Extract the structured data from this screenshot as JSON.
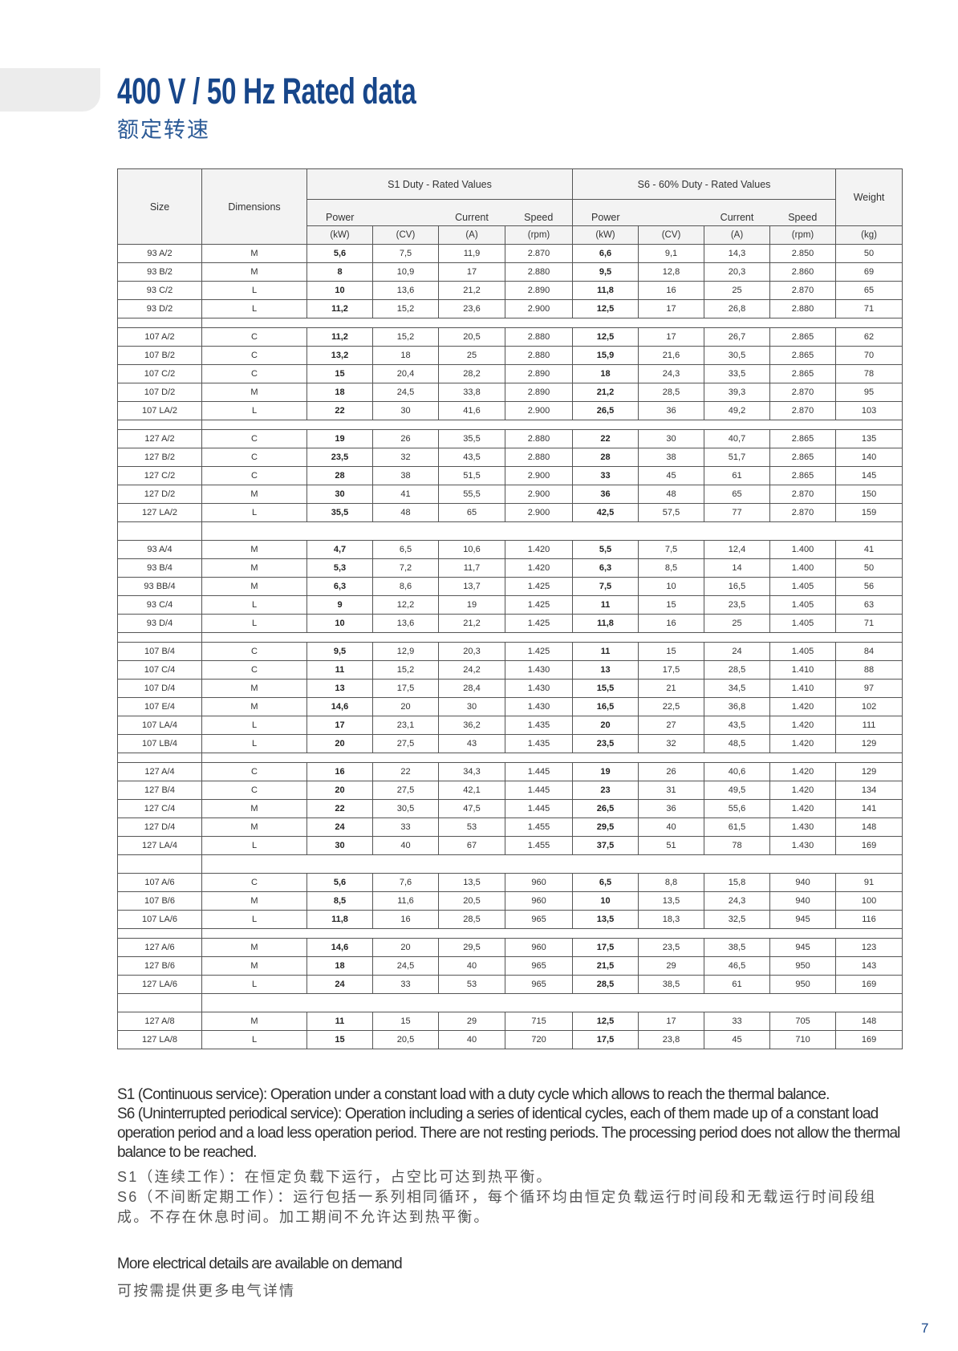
{
  "header": {
    "title": "400 V / 50 Hz Rated data",
    "subtitle": "额定转速",
    "title_color": "#17468a"
  },
  "table": {
    "col_size": "Size",
    "col_dimensions": "Dimensions",
    "group_s1": "S1 Duty - Rated Values",
    "group_s6": "S6 - 60% Duty - Rated Values",
    "col_weight": "Weight",
    "sub_power": "Power",
    "sub_current": "Current",
    "sub_speed": "Speed",
    "units": [
      "(kW)",
      "(CV)",
      "(A)",
      "(rpm)",
      "(kW)",
      "(CV)",
      "(A)",
      "(rpm)",
      "(kg)"
    ],
    "groups": [
      {
        "separator_after": "small",
        "rows": [
          [
            "93 A/2",
            "M",
            "5,6",
            "7,5",
            "11,9",
            "2.870",
            "6,6",
            "9,1",
            "14,3",
            "2.850",
            "50"
          ],
          [
            "93 B/2",
            "M",
            "8",
            "10,9",
            "17",
            "2.880",
            "9,5",
            "12,8",
            "20,3",
            "2.860",
            "69"
          ],
          [
            "93 C/2",
            "L",
            "10",
            "13,6",
            "21,2",
            "2.890",
            "11,8",
            "16",
            "25",
            "2.870",
            "65"
          ],
          [
            "93 D/2",
            "L",
            "11,2",
            "15,2",
            "23,6",
            "2.900",
            "12,5",
            "17",
            "26,8",
            "2.880",
            "71"
          ]
        ]
      },
      {
        "separator_after": "small",
        "rows": [
          [
            "107 A/2",
            "C",
            "11,2",
            "15,2",
            "20,5",
            "2.880",
            "12,5",
            "17",
            "26,7",
            "2.865",
            "62"
          ],
          [
            "107 B/2",
            "C",
            "13,2",
            "18",
            "25",
            "2.880",
            "15,9",
            "21,6",
            "30,5",
            "2.865",
            "70"
          ],
          [
            "107 C/2",
            "C",
            "15",
            "20,4",
            "28,2",
            "2.890",
            "18",
            "24,3",
            "33,5",
            "2.865",
            "78"
          ],
          [
            "107 D/2",
            "M",
            "18",
            "24,5",
            "33,8",
            "2.890",
            "21,2",
            "28,5",
            "39,3",
            "2.870",
            "95"
          ],
          [
            "107 LA/2",
            "L",
            "22",
            "30",
            "41,6",
            "2.900",
            "26,5",
            "36",
            "49,2",
            "2.870",
            "103"
          ]
        ]
      },
      {
        "separator_after": "full",
        "rows": [
          [
            "127 A/2",
            "C",
            "19",
            "26",
            "35,5",
            "2.880",
            "22",
            "30",
            "40,7",
            "2.865",
            "135"
          ],
          [
            "127 B/2",
            "C",
            "23,5",
            "32",
            "43,5",
            "2.880",
            "28",
            "38",
            "51,7",
            "2.865",
            "140"
          ],
          [
            "127 C/2",
            "C",
            "28",
            "38",
            "51,5",
            "2.900",
            "33",
            "45",
            "61",
            "2.865",
            "145"
          ],
          [
            "127 D/2",
            "M",
            "30",
            "41",
            "55,5",
            "2.900",
            "36",
            "48",
            "65",
            "2.870",
            "150"
          ],
          [
            "127 LA/2",
            "L",
            "35,5",
            "48",
            "65",
            "2.900",
            "42,5",
            "57,5",
            "77",
            "2.870",
            "159"
          ]
        ]
      },
      {
        "separator_after": "small",
        "rows": [
          [
            "93 A/4",
            "M",
            "4,7",
            "6,5",
            "10,6",
            "1.420",
            "5,5",
            "7,5",
            "12,4",
            "1.400",
            "41"
          ],
          [
            "93 B/4",
            "M",
            "5,3",
            "7,2",
            "11,7",
            "1.420",
            "6,3",
            "8,5",
            "14",
            "1.400",
            "50"
          ],
          [
            "93 BB/4",
            "M",
            "6,3",
            "8,6",
            "13,7",
            "1.425",
            "7,5",
            "10",
            "16,5",
            "1.405",
            "56"
          ],
          [
            "93 C/4",
            "L",
            "9",
            "12,2",
            "19",
            "1.425",
            "11",
            "15",
            "23,5",
            "1.405",
            "63"
          ],
          [
            "93 D/4",
            "L",
            "10",
            "13,6",
            "21,2",
            "1.425",
            "11,8",
            "16",
            "25",
            "1.405",
            "71"
          ]
        ]
      },
      {
        "separator_after": "small",
        "rows": [
          [
            "107 B/4",
            "C",
            "9,5",
            "12,9",
            "20,3",
            "1.425",
            "11",
            "15",
            "24",
            "1.405",
            "84"
          ],
          [
            "107 C/4",
            "C",
            "11",
            "15,2",
            "24,2",
            "1.430",
            "13",
            "17,5",
            "28,5",
            "1.410",
            "88"
          ],
          [
            "107 D/4",
            "M",
            "13",
            "17,5",
            "28,4",
            "1.430",
            "15,5",
            "21",
            "34,5",
            "1.410",
            "97"
          ],
          [
            "107 E/4",
            "M",
            "14,6",
            "20",
            "30",
            "1.430",
            "16,5",
            "22,5",
            "36,8",
            "1.420",
            "102"
          ],
          [
            "107 LA/4",
            "L",
            "17",
            "23,1",
            "36,2",
            "1.435",
            "20",
            "27",
            "43,5",
            "1.420",
            "111"
          ],
          [
            "107 LB/4",
            "L",
            "20",
            "27,5",
            "43",
            "1.435",
            "23,5",
            "32",
            "48,5",
            "1.420",
            "129"
          ]
        ]
      },
      {
        "separator_after": "full",
        "rows": [
          [
            "127 A/4",
            "C",
            "16",
            "22",
            "34,3",
            "1.445",
            "19",
            "26",
            "40,6",
            "1.420",
            "129"
          ],
          [
            "127 B/4",
            "C",
            "20",
            "27,5",
            "42,1",
            "1.445",
            "23",
            "31",
            "49,5",
            "1.420",
            "134"
          ],
          [
            "127 C/4",
            "M",
            "22",
            "30,5",
            "47,5",
            "1.445",
            "26,5",
            "36",
            "55,6",
            "1.420",
            "141"
          ],
          [
            "127 D/4",
            "M",
            "24",
            "33",
            "53",
            "1.455",
            "29,5",
            "40",
            "61,5",
            "1.430",
            "148"
          ],
          [
            "127 LA/4",
            "L",
            "30",
            "40",
            "67",
            "1.455",
            "37,5",
            "51",
            "78",
            "1.430",
            "169"
          ]
        ]
      },
      {
        "separator_after": "small",
        "rows": [
          [
            "107 A/6",
            "C",
            "5,6",
            "7,6",
            "13,5",
            "960",
            "6,5",
            "8,8",
            "15,8",
            "940",
            "91"
          ],
          [
            "107 B/6",
            "M",
            "8,5",
            "11,6",
            "20,5",
            "960",
            "10",
            "13,5",
            "24,3",
            "940",
            "100"
          ],
          [
            "107 LA/6",
            "L",
            "11,8",
            "16",
            "28,5",
            "965",
            "13,5",
            "18,3",
            "32,5",
            "945",
            "116"
          ]
        ]
      },
      {
        "separator_after": "full",
        "rows": [
          [
            "127 A/6",
            "M",
            "14,6",
            "20",
            "29,5",
            "960",
            "17,5",
            "23,5",
            "38,5",
            "945",
            "123"
          ],
          [
            "127 B/6",
            "M",
            "18",
            "24,5",
            "40",
            "965",
            "21,5",
            "29",
            "46,5",
            "950",
            "143"
          ],
          [
            "127 LA/6",
            "L",
            "24",
            "33",
            "53",
            "965",
            "28,5",
            "38,5",
            "61",
            "950",
            "169"
          ]
        ]
      },
      {
        "separator_after": "none",
        "rows": [
          [
            "127 A/8",
            "M",
            "11",
            "15",
            "29",
            "715",
            "12,5",
            "17",
            "33",
            "705",
            "148"
          ],
          [
            "127 LA/8",
            "L",
            "15",
            "20,5",
            "40",
            "720",
            "17,5",
            "23,8",
            "45",
            "710",
            "169"
          ]
        ]
      }
    ]
  },
  "notes": {
    "s1_en": "S1 (Continuous service): Operation under a constant load with a duty cycle which allows to reach the thermal balance.",
    "s6_en": "S6 (Uninterrupted periodical service): Operation including a series of identical cycles, each of them made up of a constant load operation period and a load less operation period. There are not resting periods. The processing period does not allow the thermal balance to be reached.",
    "s1_cn": "S1（连续工作）：在恒定负载下运行，占空比可达到热平衡。",
    "s6_cn": "S6（不间断定期工作）：运行包括一系列相同循环，每个循环均由恒定负载运行时间段和无载运行时间段组成。不存在休息时间。加工期间不允许达到热平衡。"
  },
  "footer": {
    "more_en": "More electrical details are available on demand",
    "more_cn": "可按需提供更多电气详情",
    "page_number": "7"
  }
}
